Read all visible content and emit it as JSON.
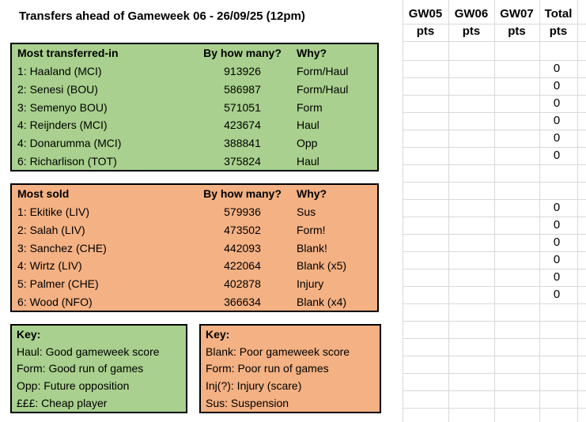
{
  "header": {
    "title": "Transfers ahead of Gameweek 06 - 26/09/25 (12pm)"
  },
  "gw_columns": [
    {
      "label": "GW05",
      "sub": "pts"
    },
    {
      "label": "GW06",
      "sub": "pts"
    },
    {
      "label": "GW07",
      "sub": "pts"
    },
    {
      "label": "Total",
      "sub": "pts"
    }
  ],
  "transfers_in": {
    "title": "Most transferred-in",
    "count_header": "By how many?",
    "why_header": "Why?",
    "rows": [
      {
        "player": "1: Haaland (MCI)",
        "count": "913926",
        "why": "Form/Haul",
        "total": "0"
      },
      {
        "player": "2: Senesi (BOU)",
        "count": "586987",
        "why": "Form/Haul",
        "total": "0"
      },
      {
        "player": "3: Semenyo BOU)",
        "count": "571051",
        "why": "Form",
        "total": "0"
      },
      {
        "player": "4: Reijnders (MCI)",
        "count": "423674",
        "why": "Haul",
        "total": "0"
      },
      {
        "player": "4: Donarumma (MCI)",
        "count": "388841",
        "why": "Opp",
        "total": "0"
      },
      {
        "player": "6: Richarlison (TOT)",
        "count": "375824",
        "why": "Haul",
        "total": "0"
      }
    ]
  },
  "transfers_out": {
    "title": "Most sold",
    "count_header": "By how many?",
    "why_header": "Why?",
    "rows": [
      {
        "player": "1: Ekitike (LIV)",
        "count": "579936",
        "why": "Sus",
        "total": "0"
      },
      {
        "player": "2: Salah (LIV)",
        "count": "473502",
        "why": "Form!",
        "total": "0"
      },
      {
        "player": "3: Sanchez (CHE)",
        "count": "442093",
        "why": "Blank!",
        "total": "0"
      },
      {
        "player": "4: Wirtz (LIV)",
        "count": "422064",
        "why": "Blank (x5)",
        "total": "0"
      },
      {
        "player": "5: Palmer (CHE)",
        "count": "402878",
        "why": "Injury",
        "total": "0"
      },
      {
        "player": "6: Wood (NFO)",
        "count": "366634",
        "why": "Blank (x4)",
        "total": "0"
      }
    ]
  },
  "key_in": {
    "title": "Key:",
    "lines": [
      "Haul: Good gameweek score",
      "Form: Good run of games",
      "Opp: Future opposition",
      "£££: Cheap player"
    ]
  },
  "key_out": {
    "title": "Key:",
    "lines": [
      "Blank: Poor gameweek score",
      "Form: Poor run of games",
      "Inj(?): Injury (scare)",
      "Sus: Suspension"
    ]
  },
  "colors": {
    "green_fill": "#a9d08e",
    "orange_fill": "#f4b183",
    "gridline": "#d9d9d9",
    "border": "#000000"
  }
}
